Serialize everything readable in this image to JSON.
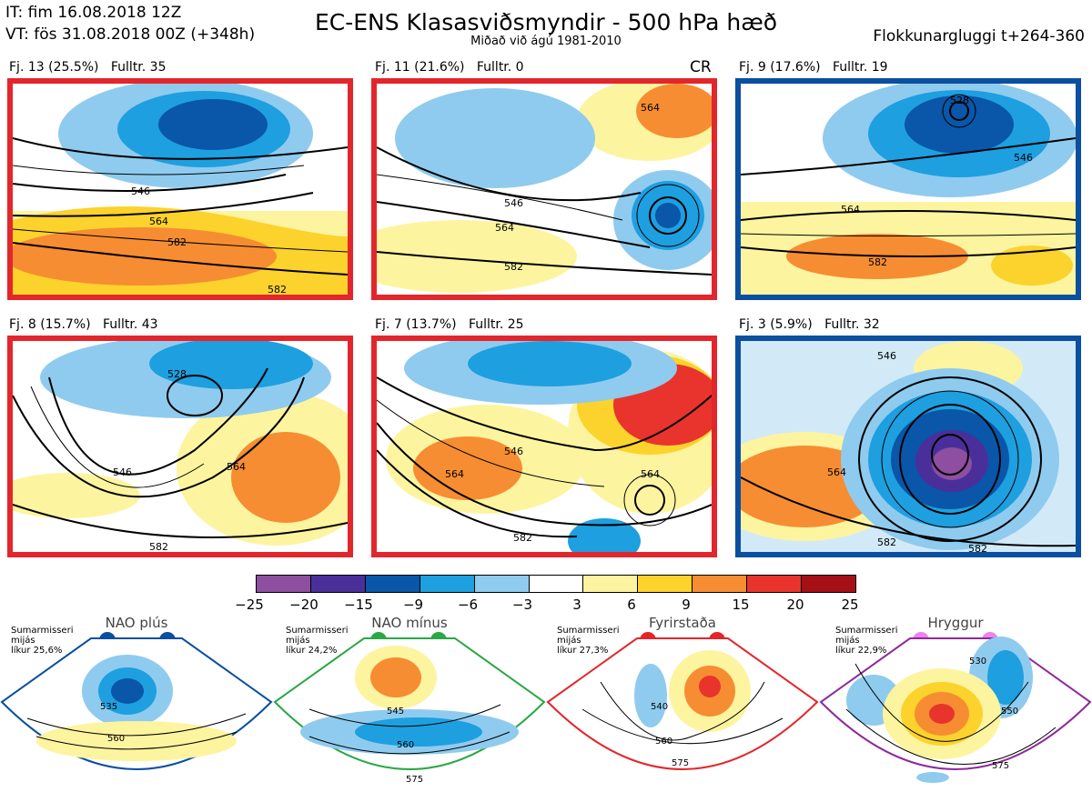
{
  "header": {
    "it": "IT: fim 16.08.2018 12Z",
    "vt": "VT: fös 31.08.2018 00Z  (+348h)",
    "title": "EC-ENS Klasasviðsmyndir - 500 hPa hæð",
    "subtitle": "Miðað við ágú 1981-2010",
    "window": "Flokkunargluggi t+264-360"
  },
  "panels": [
    {
      "label": "Fj. 13 (25.5%)",
      "fulltr": "Fulltr. 35",
      "border": "#e3262b",
      "contours": [
        "546",
        "564",
        "582",
        "582"
      ]
    },
    {
      "label": "Fj. 11 (21.6%)",
      "fulltr": "Fulltr. 0",
      "border": "#e3262b",
      "cr": "CR",
      "contours": [
        "564",
        "546",
        "564",
        "582"
      ]
    },
    {
      "label": "Fj. 9 (17.6%)",
      "fulltr": "Fulltr. 19",
      "border": "#0a4fa0",
      "contours": [
        "528",
        "546",
        "564",
        "582"
      ]
    },
    {
      "label": "Fj. 8 (15.7%)",
      "fulltr": "Fulltr. 43",
      "border": "#e3262b",
      "contours": [
        "528",
        "546",
        "564",
        "582"
      ]
    },
    {
      "label": "Fj. 7 (13.7%)",
      "fulltr": "Fulltr. 25",
      "border": "#e3262b",
      "contours": [
        "546",
        "564",
        "582",
        "564"
      ]
    },
    {
      "label": "Fj. 3 (5.9%)",
      "fulltr": "Fulltr. 32",
      "border": "#0a4fa0",
      "contours": [
        "546",
        "564",
        "582",
        "582"
      ]
    }
  ],
  "colorbar": {
    "colors": [
      "#8e4fa0",
      "#4a2f9a",
      "#0a56a8",
      "#1e9fe0",
      "#8fcbee",
      "#ffffff",
      "#fdf4a0",
      "#fcd22c",
      "#f68d32",
      "#e8342c",
      "#a50f15"
    ],
    "ticks": [
      "−25",
      "−20",
      "−15",
      "−9",
      "−6",
      "−3",
      "3",
      "6",
      "9",
      "15",
      "20",
      "25"
    ]
  },
  "regimes": [
    {
      "name": "NAO plús",
      "stat1": "Sumarmisseri",
      "stat2": "mijás",
      "stat3": "líkur 25,6%",
      "color": "#0a4fa0",
      "contours": [
        "535",
        "560"
      ]
    },
    {
      "name": "NAO mínus",
      "stat1": "Sumarmisseri",
      "stat2": "mijás",
      "stat3": "líkur 24,2%",
      "color": "#2aa845",
      "contours": [
        "545",
        "560",
        "575"
      ]
    },
    {
      "name": "Fyrirstaða",
      "stat1": "Sumarmisseri",
      "stat2": "mijás",
      "stat3": "líkur 27,3%",
      "color": "#e3262b",
      "contours": [
        "540",
        "560",
        "575"
      ]
    },
    {
      "name": "Hryggur",
      "stat1": "Sumarmisseri",
      "stat2": "mijás",
      "stat3": "líkur 22,9%",
      "color": "#8e2a9a",
      "contours": [
        "530",
        "550",
        "575"
      ]
    }
  ]
}
